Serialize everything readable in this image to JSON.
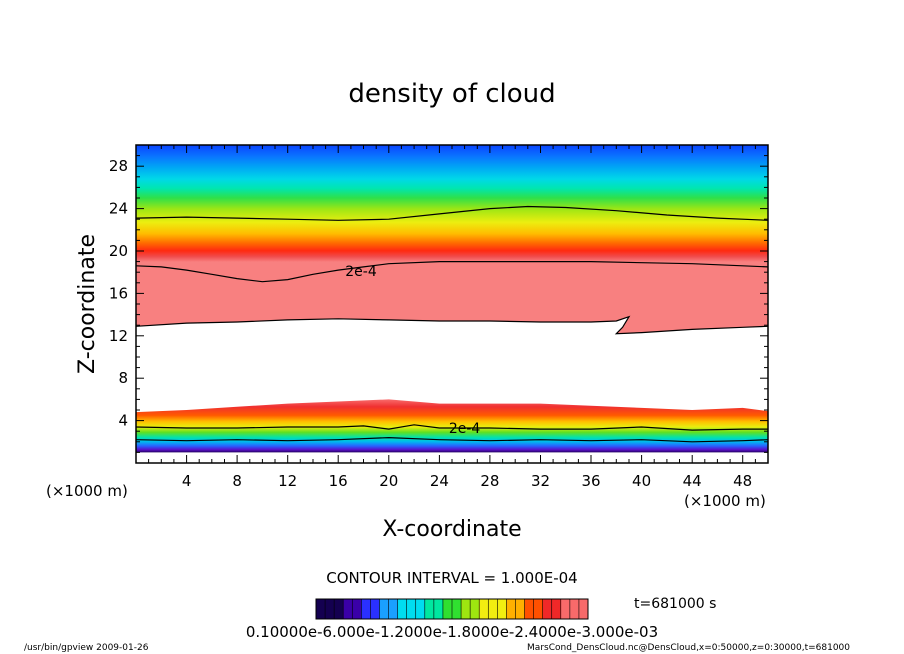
{
  "chart_data": {
    "type": "heatmap",
    "title": "density of cloud",
    "xlabel": "X-coordinate",
    "ylabel": "Z-coordinate",
    "x_unit": "(×1000 m)",
    "y_unit": "(×1000 m)",
    "xlim": [
      0,
      50
    ],
    "ylim": [
      0,
      30
    ],
    "x_ticks": [
      4,
      8,
      12,
      16,
      20,
      24,
      28,
      32,
      36,
      40,
      44,
      48
    ],
    "x_tick_labels": [
      "4",
      "8",
      "12",
      "16",
      "20",
      "24",
      "28",
      "32",
      "36",
      "40",
      "44",
      "48"
    ],
    "y_ticks": [
      4,
      8,
      12,
      16,
      20,
      24,
      28
    ],
    "y_tick_labels": [
      "4",
      "8",
      "12",
      "16",
      "20",
      "24",
      "28"
    ],
    "x_minor_step": 1,
    "y_minor_step": 1,
    "contour_interval": "CONTOUR INTERVAL = 1.000E-04",
    "time_label": "t=681000 s",
    "contour_labels": [
      {
        "text": "2e-4",
        "x": 17.8,
        "z": 18.1
      },
      {
        "text": "2e-4",
        "x": 26.0,
        "z": 3.3
      }
    ],
    "contours": [
      {
        "level": "1e-4",
        "points": [
          [
            0,
            23.1
          ],
          [
            4,
            23.2
          ],
          [
            8,
            23.1
          ],
          [
            12,
            23.0
          ],
          [
            16,
            22.9
          ],
          [
            20,
            23.0
          ],
          [
            24,
            23.5
          ],
          [
            28,
            24.0
          ],
          [
            31,
            24.2
          ],
          [
            34,
            24.1
          ],
          [
            38,
            23.8
          ],
          [
            42,
            23.4
          ],
          [
            46,
            23.1
          ],
          [
            50,
            22.9
          ]
        ]
      },
      {
        "level": "2e-4",
        "points": [
          [
            0,
            18.6
          ],
          [
            2,
            18.5
          ],
          [
            4,
            18.2
          ],
          [
            6,
            17.8
          ],
          [
            8,
            17.4
          ],
          [
            10,
            17.1
          ],
          [
            12,
            17.3
          ],
          [
            14,
            17.8
          ],
          [
            16,
            18.2
          ],
          [
            18,
            18.5
          ],
          [
            20,
            18.8
          ],
          [
            24,
            19.0
          ],
          [
            28,
            19.0
          ],
          [
            32,
            19.0
          ],
          [
            36,
            19.0
          ],
          [
            40,
            18.9
          ],
          [
            44,
            18.8
          ],
          [
            48,
            18.6
          ],
          [
            50,
            18.5
          ]
        ]
      },
      {
        "level": "1e-4",
        "points": [
          [
            0,
            12.9
          ],
          [
            4,
            13.2
          ],
          [
            8,
            13.3
          ],
          [
            12,
            13.5
          ],
          [
            16,
            13.6
          ],
          [
            20,
            13.5
          ],
          [
            24,
            13.4
          ],
          [
            28,
            13.4
          ],
          [
            32,
            13.3
          ],
          [
            36,
            13.3
          ],
          [
            38,
            13.4
          ],
          [
            39,
            13.8
          ],
          [
            38.5,
            12.8
          ],
          [
            38,
            12.2
          ],
          [
            40,
            12.3
          ],
          [
            44,
            12.6
          ],
          [
            48,
            12.8
          ],
          [
            50,
            12.9
          ]
        ]
      },
      {
        "level": "2e-4",
        "points": [
          [
            0,
            3.4
          ],
          [
            4,
            3.3
          ],
          [
            8,
            3.3
          ],
          [
            12,
            3.4
          ],
          [
            16,
            3.4
          ],
          [
            18,
            3.5
          ],
          [
            20,
            3.2
          ],
          [
            22,
            3.6
          ],
          [
            24,
            3.3
          ],
          [
            28,
            3.3
          ],
          [
            32,
            3.2
          ],
          [
            36,
            3.2
          ],
          [
            40,
            3.4
          ],
          [
            44,
            3.1
          ],
          [
            48,
            3.2
          ],
          [
            50,
            3.2
          ]
        ]
      },
      {
        "level": "1e-4",
        "points": [
          [
            0,
            2.2
          ],
          [
            4,
            2.1
          ],
          [
            8,
            2.2
          ],
          [
            12,
            2.1
          ],
          [
            16,
            2.2
          ],
          [
            20,
            2.4
          ],
          [
            24,
            2.2
          ],
          [
            28,
            2.1
          ],
          [
            32,
            2.2
          ],
          [
            36,
            2.1
          ],
          [
            40,
            2.2
          ],
          [
            44,
            2.0
          ],
          [
            48,
            2.1
          ],
          [
            50,
            2.2
          ]
        ]
      }
    ],
    "color_bar": {
      "tick_labels": "0.10000e-6.000e-1.2000e-1.8000e-2.4000e-3.000e-03"
    },
    "colors": {
      "palette": [
        "#140050",
        "#3a00a8",
        "#2a30ff",
        "#1aa0ff",
        "#00dcf0",
        "#00e8a0",
        "#30e030",
        "#9ee610",
        "#f2ee10",
        "#ffb000",
        "#ff5000",
        "#f02828",
        "#f86a6a",
        "#ffffff"
      ]
    }
  },
  "footer": {
    "left": "/usr/bin/gpview  2009-01-26",
    "right": "MarsCond_DensCloud.nc@DensCloud,x=0:50000,z=0:30000,t=681000"
  }
}
